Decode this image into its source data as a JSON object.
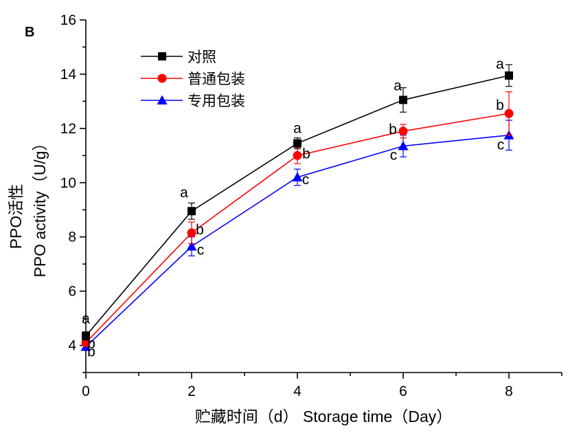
{
  "chart_data": {
    "type": "line",
    "panel_label": "B",
    "xlabel": "贮藏时间（d） Storage time（Day）",
    "ylabel_cn": "PPO活性",
    "ylabel_en": "PPO activity（U/g）",
    "x": [
      0,
      2,
      4,
      6,
      8
    ],
    "xlim": [
      0,
      9
    ],
    "ylim": [
      3,
      16
    ],
    "x_ticks": [
      "0",
      "2",
      "4",
      "6",
      "8"
    ],
    "y_ticks": [
      "4",
      "6",
      "8",
      "10",
      "12",
      "14",
      "16"
    ],
    "legend_position": "top-left",
    "series": [
      {
        "name": "对照",
        "color": "#000000",
        "marker": "square",
        "values": [
          4.35,
          8.95,
          11.45,
          13.05,
          13.95
        ],
        "errors": [
          0.15,
          0.3,
          0.2,
          0.45,
          0.4
        ],
        "letters": [
          "a",
          "a",
          "a",
          "a",
          "a"
        ]
      },
      {
        "name": "普通包装",
        "color": "#ff0000",
        "marker": "circle",
        "values": [
          4.1,
          8.15,
          11.0,
          11.9,
          12.55
        ],
        "errors": [
          0.1,
          0.4,
          0.3,
          0.25,
          0.8
        ],
        "letters": [
          "b",
          "b",
          "b",
          "b",
          "b"
        ]
      },
      {
        "name": "专用包装",
        "color": "#0000ff",
        "marker": "triangle",
        "values": [
          3.95,
          7.65,
          10.2,
          11.35,
          11.75
        ],
        "errors": [
          0.1,
          0.35,
          0.3,
          0.4,
          0.55
        ],
        "letters": [
          "b",
          "c",
          "c",
          "c",
          "c"
        ]
      }
    ]
  }
}
